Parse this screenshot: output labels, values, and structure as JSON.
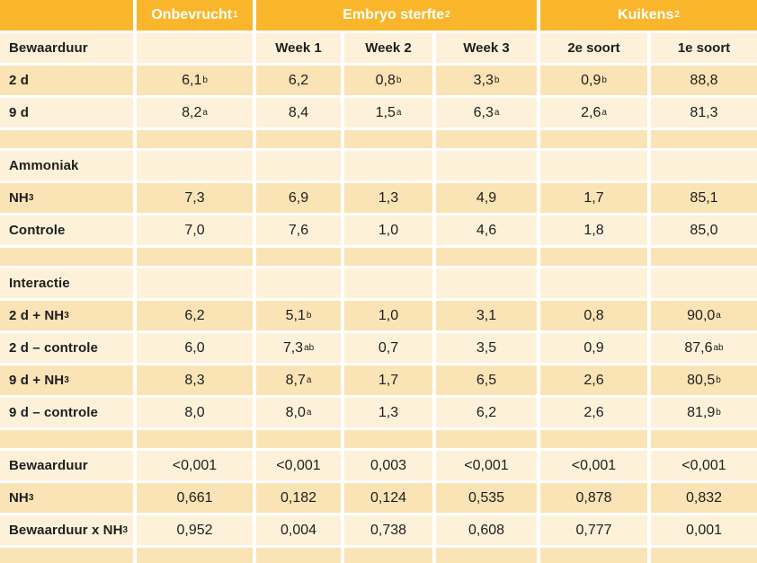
{
  "colors": {
    "header_bg": "#FAB62B",
    "header_text": "#FFFFFF",
    "row_dark": "#FAE3B5",
    "row_light": "#FDF1DA",
    "text": "#1E1E1C",
    "gap": "#FFFFFF"
  },
  "table": {
    "top_header": [
      {
        "name": "corner",
        "text": "",
        "span": 1
      },
      {
        "name": "onbevrucht",
        "text": "Onbevrucht^1^",
        "span": 1
      },
      {
        "name": "embryo-sterfte",
        "text": "Embryo sterfte^2^",
        "span": 3
      },
      {
        "name": "kuikens",
        "text": "Kuikens^2^",
        "span": 2
      }
    ],
    "subheader": {
      "label": "Bewaarduur",
      "cols": [
        "",
        "Week 1",
        "Week 2",
        "Week 3",
        "2e soort",
        "1e soort"
      ]
    },
    "rows": [
      {
        "kind": "data",
        "shade": "dark",
        "label": "2 d",
        "cells": [
          "6,1^b^",
          "6,2",
          "0,8^b^",
          "3,3^b^",
          "0,9^b^",
          "88,8"
        ]
      },
      {
        "kind": "data",
        "shade": "light",
        "label": "9 d",
        "cells": [
          "8,2^a^",
          "8,4",
          "1,5^a^",
          "6,3^a^",
          "2,6^a^",
          "81,3"
        ]
      },
      {
        "kind": "spacer",
        "shade": "dark"
      },
      {
        "kind": "section",
        "shade": "light",
        "label": "Ammoniak"
      },
      {
        "kind": "data",
        "shade": "dark",
        "label": "NH~3~",
        "cells": [
          "7,3",
          "6,9",
          "1,3",
          "4,9",
          "1,7",
          "85,1"
        ]
      },
      {
        "kind": "data",
        "shade": "light",
        "label": "Controle",
        "cells": [
          "7,0",
          "7,6",
          "1,0",
          "4,6",
          "1,8",
          "85,0"
        ]
      },
      {
        "kind": "spacer",
        "shade": "dark"
      },
      {
        "kind": "section",
        "shade": "light",
        "label": "Interactie"
      },
      {
        "kind": "data",
        "shade": "dark",
        "label": "2 d + NH~3~",
        "cells": [
          "6,2",
          "5,1^b^",
          "1,0",
          "3,1",
          "0,8",
          "90,0^a^"
        ]
      },
      {
        "kind": "data",
        "shade": "light",
        "label": "2 d – controle",
        "cells": [
          "6,0",
          "7,3^ab^",
          "0,7",
          "3,5",
          "0,9",
          "87,6^ab^"
        ]
      },
      {
        "kind": "data",
        "shade": "dark",
        "label": "9 d + NH~3~",
        "cells": [
          "8,3",
          "8,7^a^",
          "1,7",
          "6,5",
          "2,6",
          "80,5^b^"
        ]
      },
      {
        "kind": "data",
        "shade": "light",
        "label": "9 d – controle",
        "cells": [
          "8,0",
          "8,0^a^",
          "1,3",
          "6,2",
          "2,6",
          "81,9^b^"
        ]
      },
      {
        "kind": "spacer",
        "shade": "dark"
      },
      {
        "kind": "data",
        "shade": "light",
        "label": "Bewaarduur",
        "cells": [
          "<0,001",
          "<0,001",
          "0,003",
          "<0,001",
          "<0,001",
          "<0,001"
        ]
      },
      {
        "kind": "data",
        "shade": "dark",
        "label": "NH~3~",
        "cells": [
          "0,661",
          "0,182",
          "0,124",
          "0,535",
          "0,878",
          "0,832"
        ]
      },
      {
        "kind": "data",
        "shade": "light",
        "label": "Bewaarduur x NH~3~",
        "cells": [
          "0,952",
          "0,004",
          "0,738",
          "0,608",
          "0,777",
          "0,001"
        ]
      },
      {
        "kind": "spacer",
        "shade": "dark"
      }
    ]
  }
}
